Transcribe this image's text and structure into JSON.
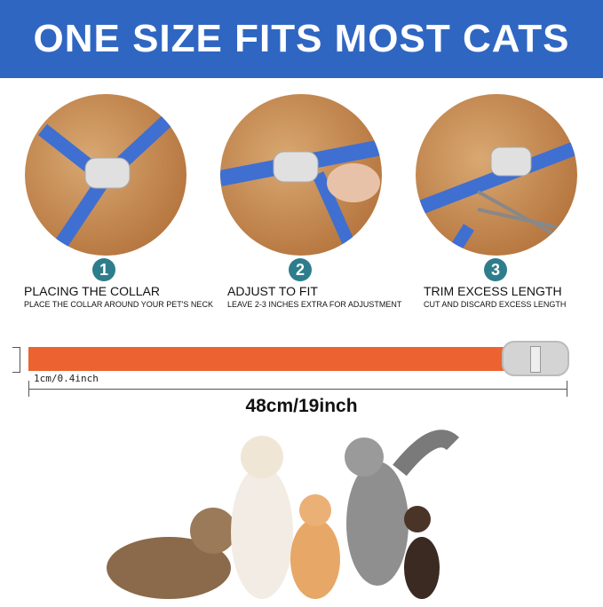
{
  "banner": {
    "title": "ONE SIZE FITS MOST CATS"
  },
  "steps": [
    {
      "number": "1",
      "title": "PLACING THE COLLAR",
      "subtitle": "PLACE THE COLLAR AROUND YOUR PET'S NECK"
    },
    {
      "number": "2",
      "title": "ADJUST TO FIT",
      "subtitle": "LEAVE 2-3 INCHES EXTRA FOR ADJUSTMENT"
    },
    {
      "number": "3",
      "title": "TRIM EXCESS LENGTH",
      "subtitle": "CUT AND DISCARD EXCESS LENGTH"
    }
  ],
  "collar": {
    "width_label": "1cm/0.4inch",
    "length_label": "48cm/19inch",
    "color": "#ec6331"
  },
  "colors": {
    "banner": "#2f66c2",
    "step_badge": "#2e7d8c",
    "collar_blue": "#3f6fd1"
  }
}
